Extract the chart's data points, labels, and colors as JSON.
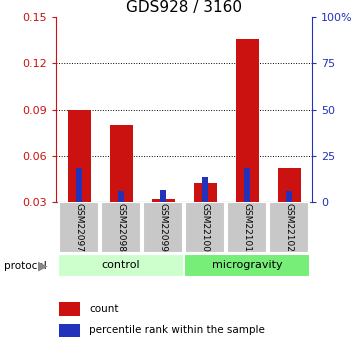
{
  "title": "GDS928 / 3160",
  "categories": [
    "GSM22097",
    "GSM22098",
    "GSM22099",
    "GSM22100",
    "GSM22101",
    "GSM22102"
  ],
  "red_values": [
    0.09,
    0.08,
    0.032,
    0.042,
    0.136,
    0.052
  ],
  "blue_values": [
    0.052,
    0.037,
    0.038,
    0.046,
    0.052,
    0.037
  ],
  "baseline": 0.03,
  "ylim": [
    0.03,
    0.15
  ],
  "yticks_left": [
    0.03,
    0.06,
    0.09,
    0.12,
    0.15
  ],
  "ytick_labels_left": [
    "0.03",
    "0.06",
    "0.09",
    "0.12",
    "0.15"
  ],
  "yticks_right_pct": [
    0,
    25,
    50,
    75,
    100
  ],
  "ytick_labels_right": [
    "0",
    "25",
    "50",
    "75",
    "100%"
  ],
  "grid_values": [
    0.06,
    0.09,
    0.12
  ],
  "control_label": "control",
  "micro_label": "microgravity",
  "protocol_label": "protocol",
  "legend_red": "count",
  "legend_blue": "percentile rank within the sample",
  "red_color": "#cc1111",
  "blue_color": "#2233bb",
  "control_bg": "#ccffcc",
  "micro_bg": "#77ee77",
  "sample_bg": "#c8c8c8",
  "title_fontsize": 11,
  "tick_fontsize": 8,
  "bar_fontsize": 7
}
